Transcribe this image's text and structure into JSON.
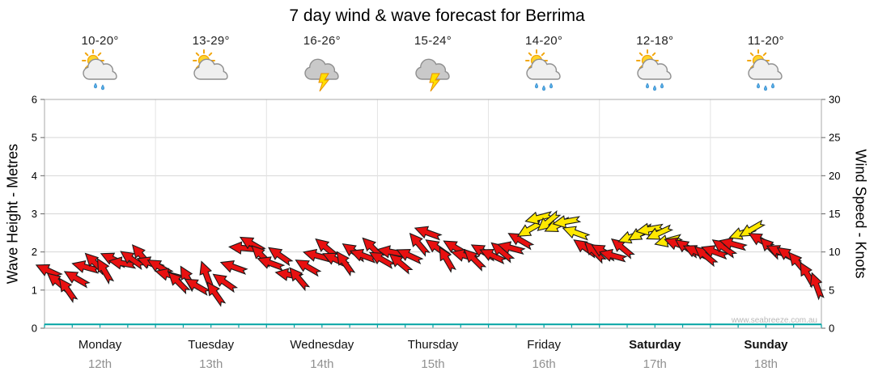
{
  "chart_data": {
    "type": "scatter",
    "title": "7 day wind & wave forecast for Berrima",
    "watermark": "www.seabreeze.com.au",
    "left_axis": {
      "label": "Wave Height - Metres",
      "min": 0,
      "max": 6,
      "ticks": [
        0,
        1,
        2,
        3,
        4,
        5,
        6
      ]
    },
    "right_axis": {
      "label": "Wind Speed - Knots",
      "min": 0,
      "max": 30,
      "ticks": [
        0,
        5,
        10,
        15,
        20,
        25,
        30
      ]
    },
    "days": [
      {
        "name": "Monday",
        "date": "12th",
        "temp": "10-20°",
        "icon": "sun-cloud-rain",
        "bold": false
      },
      {
        "name": "Tuesday",
        "date": "13th",
        "temp": "13-29°",
        "icon": "sun-cloud",
        "bold": false
      },
      {
        "name": "Wednesday",
        "date": "14th",
        "temp": "16-26°",
        "icon": "storm",
        "bold": false
      },
      {
        "name": "Thursday",
        "date": "15th",
        "temp": "15-24°",
        "icon": "storm",
        "bold": false
      },
      {
        "name": "Friday",
        "date": "16th",
        "temp": "14-20°",
        "icon": "sun-cloud-showers",
        "bold": false
      },
      {
        "name": "Saturday",
        "date": "17th",
        "temp": "12-18°",
        "icon": "sun-cloud-showers",
        "bold": true
      },
      {
        "name": "Sunday",
        "date": "18th",
        "temp": "11-20°",
        "icon": "sun-cloud-showers",
        "bold": true
      }
    ],
    "wind": {
      "points_per_day": 12,
      "speeds_knots": [
        7.5,
        6,
        5,
        6.5,
        8,
        8.5,
        7.5,
        9,
        8.5,
        9,
        9.5,
        8.5,
        8,
        7,
        6,
        6.5,
        5.5,
        7,
        4.5,
        6,
        8,
        10.5,
        11,
        9.5,
        8.5,
        9.5,
        7,
        6.5,
        8,
        9.5,
        10.5,
        9,
        8.5,
        10,
        9.5,
        10.5,
        9,
        10,
        8.5,
        9.5,
        11,
        12.5,
        10.5,
        9,
        10.5,
        9.5,
        9,
        10,
        9.5,
        10,
        10.5,
        11.5,
        13,
        14.5,
        14,
        13.5,
        14,
        12.5,
        10.5,
        10,
        10,
        9.5,
        10.5,
        12,
        12.5,
        13,
        12.5,
        11.5,
        11,
        10.5,
        10,
        9.5,
        10,
        10.5,
        11,
        12.5,
        13,
        11.5,
        10.5,
        10,
        9.5,
        8.5,
        7,
        5.5
      ],
      "directions_deg": [
        205,
        220,
        235,
        210,
        195,
        225,
        240,
        205,
        190,
        215,
        230,
        200,
        210,
        195,
        225,
        240,
        210,
        250,
        235,
        215,
        200,
        185,
        210,
        225,
        200,
        215,
        190,
        230,
        210,
        195,
        220,
        205,
        235,
        215,
        200,
        225,
        210,
        190,
        220,
        205,
        230,
        200,
        215,
        240,
        210,
        195,
        225,
        210,
        205,
        220,
        195,
        210,
        150,
        165,
        140,
        155,
        170,
        200,
        215,
        225,
        210,
        195,
        220,
        160,
        150,
        170,
        155,
        165,
        200,
        215,
        205,
        220,
        200,
        215,
        195,
        160,
        150,
        210,
        225,
        205,
        215,
        230,
        240,
        250
      ],
      "colors": [
        "r",
        "r",
        "r",
        "r",
        "r",
        "r",
        "r",
        "r",
        "r",
        "r",
        "r",
        "r",
        "r",
        "r",
        "r",
        "r",
        "r",
        "r",
        "r",
        "r",
        "r",
        "r",
        "r",
        "r",
        "r",
        "r",
        "r",
        "r",
        "r",
        "r",
        "r",
        "r",
        "r",
        "r",
        "r",
        "r",
        "r",
        "r",
        "r",
        "r",
        "r",
        "r",
        "r",
        "r",
        "r",
        "r",
        "r",
        "r",
        "r",
        "r",
        "r",
        "r",
        "y",
        "y",
        "y",
        "y",
        "y",
        "y",
        "r",
        "r",
        "r",
        "r",
        "r",
        "y",
        "y",
        "y",
        "y",
        "y",
        "r",
        "r",
        "r",
        "r",
        "r",
        "r",
        "r",
        "y",
        "y",
        "r",
        "r",
        "r",
        "r",
        "r",
        "r",
        "r"
      ]
    },
    "wave_height_m": 0.1,
    "colors": {
      "low_wind": "#e81010",
      "moderate_wind": "#ffe800",
      "wave_line": "#00a3a3",
      "grid": "#d6d6d6",
      "day_grid": "#e3e3e3",
      "border": "#a8a8a8"
    }
  }
}
